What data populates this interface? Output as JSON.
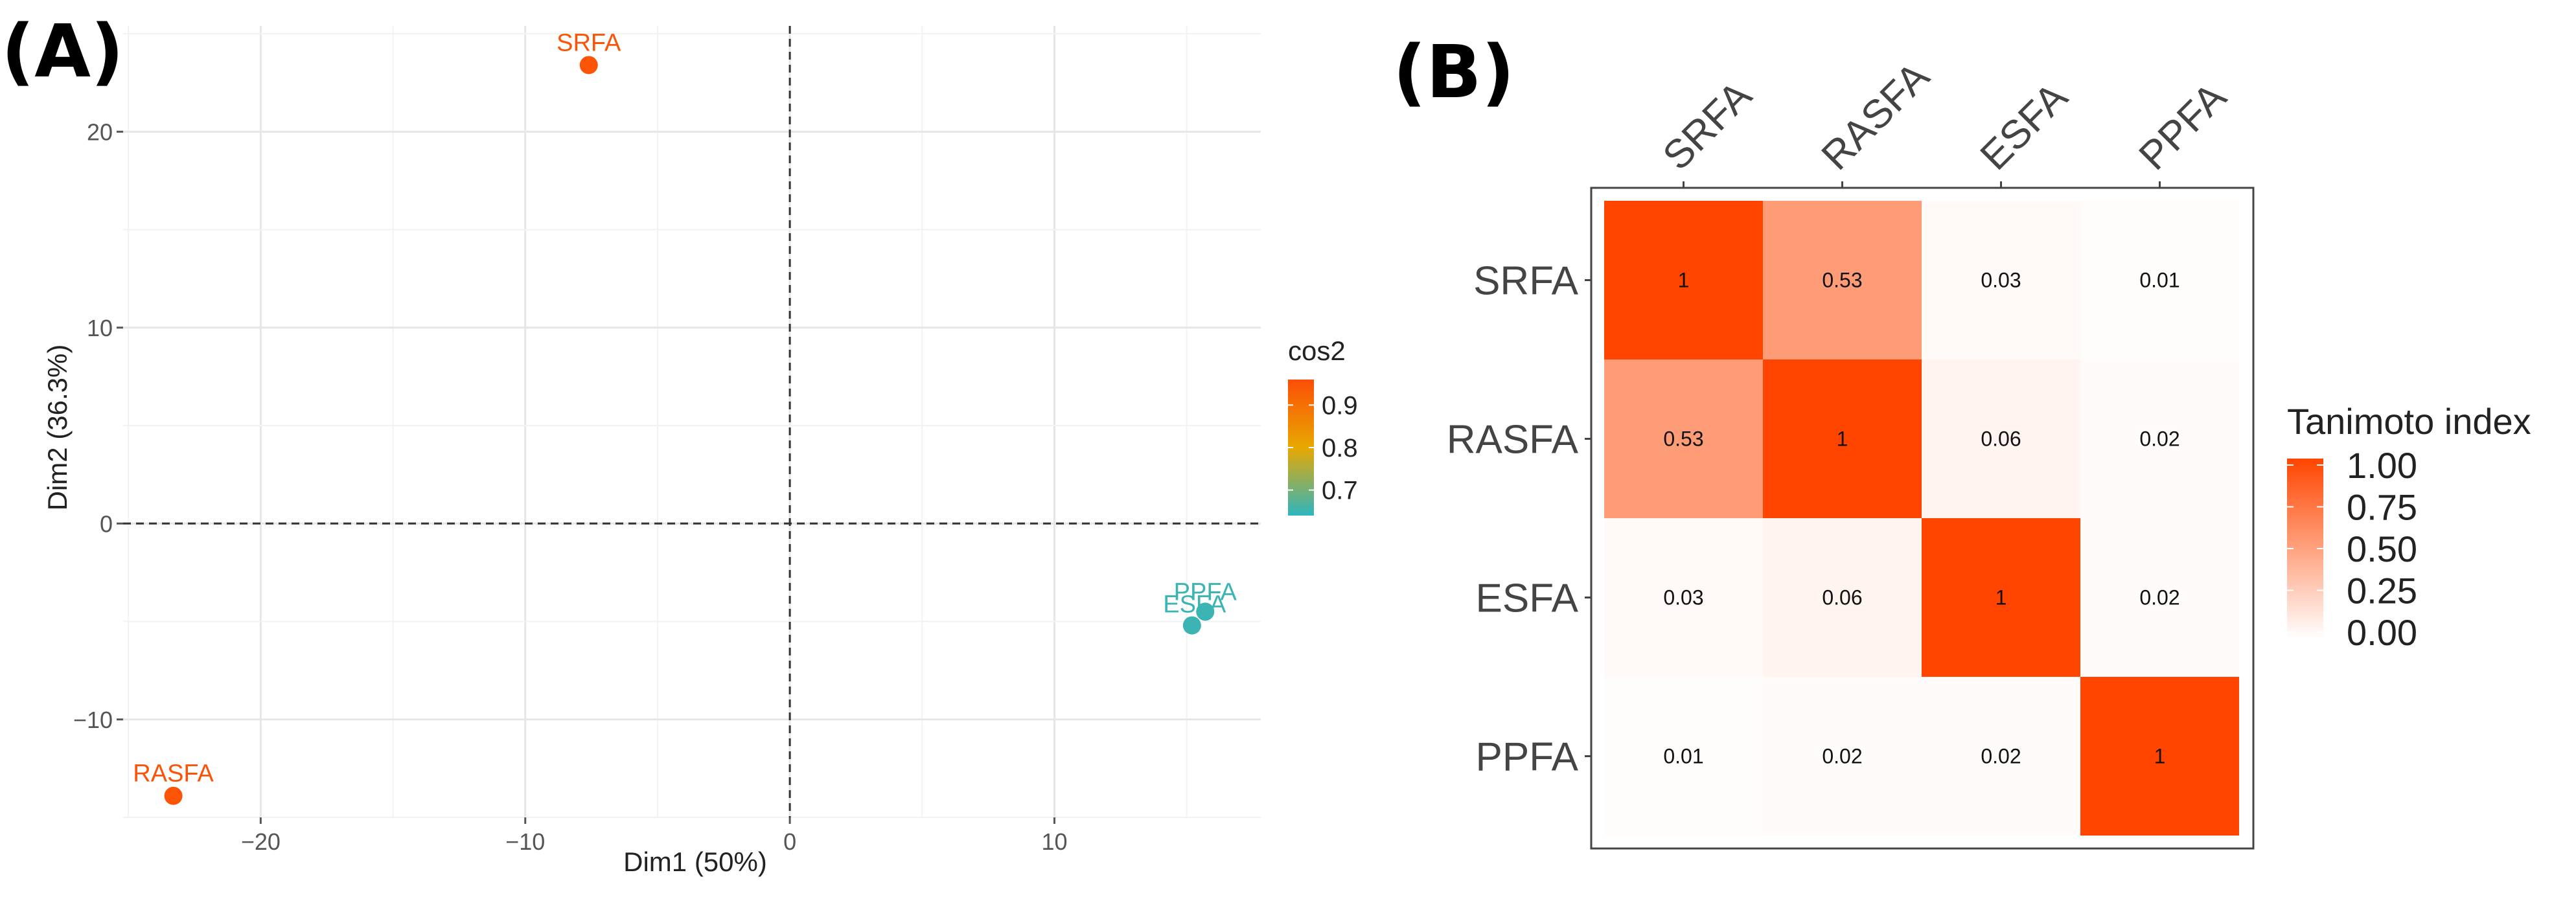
{
  "panel_labels": {
    "a": "(A)",
    "b": "(B)"
  },
  "chart_data": [
    {
      "type": "scatter",
      "xlabel": "Dim1 (50%)",
      "ylabel": "Dim2 (36.3%)",
      "xlim": [
        -25.2,
        17.8
      ],
      "ylim": [
        -15.0,
        25.4
      ],
      "x_ticks": [
        -20,
        -10,
        0,
        10
      ],
      "y_ticks": [
        -10,
        0,
        10,
        20
      ],
      "x_tick_labels": [
        "−20",
        "−10",
        "0",
        "10"
      ],
      "y_tick_labels": [
        "−10",
        "0",
        "10",
        "20"
      ],
      "grid": true,
      "reference_lines": {
        "x": 0,
        "y": 0,
        "style": "dashed"
      },
      "points": [
        {
          "label": "SRFA",
          "x": -7.6,
          "y": 23.4,
          "cos2": 0.95
        },
        {
          "label": "RASFA",
          "x": -23.3,
          "y": -13.9,
          "cos2": 0.95
        },
        {
          "label": "ESFA",
          "x": 15.2,
          "y": -5.2,
          "cos2": 0.65
        },
        {
          "label": "PPFA",
          "x": 15.7,
          "y": -4.5,
          "cos2": 0.65
        }
      ],
      "color_legend": {
        "title": "cos2",
        "ticks": [
          0.9,
          0.8,
          0.7
        ],
        "tick_labels": [
          "0.9",
          "0.8",
          "0.7"
        ],
        "range": [
          0.64,
          0.96
        ],
        "colors": [
          "#2fb5bf",
          "#e8a800",
          "#fc4e07"
        ],
        "placement": "right"
      }
    },
    {
      "type": "heatmap",
      "categories": [
        "SRFA",
        "RASFA",
        "ESFA",
        "PPFA"
      ],
      "values": [
        [
          1,
          0.53,
          0.03,
          0.01
        ],
        [
          0.53,
          1,
          0.06,
          0.02
        ],
        [
          0.03,
          0.06,
          1,
          0.02
        ],
        [
          0.01,
          0.02,
          0.02,
          1
        ]
      ],
      "value_labels": [
        [
          "1",
          "0.53",
          "0.03",
          "0.01"
        ],
        [
          "0.53",
          "1",
          "0.06",
          "0.02"
        ],
        [
          "0.03",
          "0.06",
          "1",
          "0.02"
        ],
        [
          "0.01",
          "0.02",
          "0.02",
          "1"
        ]
      ],
      "triangle": "upper",
      "color_legend": {
        "title": "Tanimoto index",
        "ticks": [
          1.0,
          0.75,
          0.5,
          0.25,
          0.0
        ],
        "tick_labels": [
          "1.00",
          "0.75",
          "0.50",
          "0.25",
          "0.00"
        ],
        "range": [
          0,
          1
        ],
        "colors": [
          "#ffffff",
          "#ff4500"
        ],
        "placement": "right"
      }
    }
  ]
}
